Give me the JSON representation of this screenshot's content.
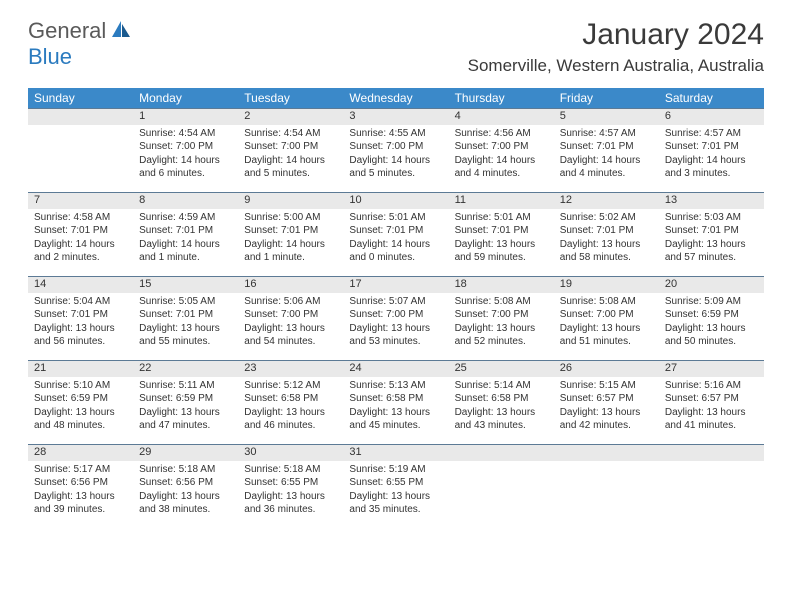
{
  "logo": {
    "word1": "General",
    "word2": "Blue"
  },
  "title": "January 2024",
  "location": "Somerville, Western Australia, Australia",
  "colors": {
    "header_bg": "#3b89c9",
    "header_text": "#ffffff",
    "daynum_bg": "#e9e9e9",
    "border": "#5c7a95",
    "logo_gray": "#5a5a5a",
    "logo_blue": "#2b7bbf"
  },
  "days_of_week": [
    "Sunday",
    "Monday",
    "Tuesday",
    "Wednesday",
    "Thursday",
    "Friday",
    "Saturday"
  ],
  "weeks": [
    {
      "nums": [
        "",
        "1",
        "2",
        "3",
        "4",
        "5",
        "6"
      ],
      "cells": [
        "",
        "Sunrise: 4:54 AM\nSunset: 7:00 PM\nDaylight: 14 hours and 6 minutes.",
        "Sunrise: 4:54 AM\nSunset: 7:00 PM\nDaylight: 14 hours and 5 minutes.",
        "Sunrise: 4:55 AM\nSunset: 7:00 PM\nDaylight: 14 hours and 5 minutes.",
        "Sunrise: 4:56 AM\nSunset: 7:00 PM\nDaylight: 14 hours and 4 minutes.",
        "Sunrise: 4:57 AM\nSunset: 7:01 PM\nDaylight: 14 hours and 4 minutes.",
        "Sunrise: 4:57 AM\nSunset: 7:01 PM\nDaylight: 14 hours and 3 minutes."
      ]
    },
    {
      "nums": [
        "7",
        "8",
        "9",
        "10",
        "11",
        "12",
        "13"
      ],
      "cells": [
        "Sunrise: 4:58 AM\nSunset: 7:01 PM\nDaylight: 14 hours and 2 minutes.",
        "Sunrise: 4:59 AM\nSunset: 7:01 PM\nDaylight: 14 hours and 1 minute.",
        "Sunrise: 5:00 AM\nSunset: 7:01 PM\nDaylight: 14 hours and 1 minute.",
        "Sunrise: 5:01 AM\nSunset: 7:01 PM\nDaylight: 14 hours and 0 minutes.",
        "Sunrise: 5:01 AM\nSunset: 7:01 PM\nDaylight: 13 hours and 59 minutes.",
        "Sunrise: 5:02 AM\nSunset: 7:01 PM\nDaylight: 13 hours and 58 minutes.",
        "Sunrise: 5:03 AM\nSunset: 7:01 PM\nDaylight: 13 hours and 57 minutes."
      ]
    },
    {
      "nums": [
        "14",
        "15",
        "16",
        "17",
        "18",
        "19",
        "20"
      ],
      "cells": [
        "Sunrise: 5:04 AM\nSunset: 7:01 PM\nDaylight: 13 hours and 56 minutes.",
        "Sunrise: 5:05 AM\nSunset: 7:01 PM\nDaylight: 13 hours and 55 minutes.",
        "Sunrise: 5:06 AM\nSunset: 7:00 PM\nDaylight: 13 hours and 54 minutes.",
        "Sunrise: 5:07 AM\nSunset: 7:00 PM\nDaylight: 13 hours and 53 minutes.",
        "Sunrise: 5:08 AM\nSunset: 7:00 PM\nDaylight: 13 hours and 52 minutes.",
        "Sunrise: 5:08 AM\nSunset: 7:00 PM\nDaylight: 13 hours and 51 minutes.",
        "Sunrise: 5:09 AM\nSunset: 6:59 PM\nDaylight: 13 hours and 50 minutes."
      ]
    },
    {
      "nums": [
        "21",
        "22",
        "23",
        "24",
        "25",
        "26",
        "27"
      ],
      "cells": [
        "Sunrise: 5:10 AM\nSunset: 6:59 PM\nDaylight: 13 hours and 48 minutes.",
        "Sunrise: 5:11 AM\nSunset: 6:59 PM\nDaylight: 13 hours and 47 minutes.",
        "Sunrise: 5:12 AM\nSunset: 6:58 PM\nDaylight: 13 hours and 46 minutes.",
        "Sunrise: 5:13 AM\nSunset: 6:58 PM\nDaylight: 13 hours and 45 minutes.",
        "Sunrise: 5:14 AM\nSunset: 6:58 PM\nDaylight: 13 hours and 43 minutes.",
        "Sunrise: 5:15 AM\nSunset: 6:57 PM\nDaylight: 13 hours and 42 minutes.",
        "Sunrise: 5:16 AM\nSunset: 6:57 PM\nDaylight: 13 hours and 41 minutes."
      ]
    },
    {
      "nums": [
        "28",
        "29",
        "30",
        "31",
        "",
        "",
        ""
      ],
      "cells": [
        "Sunrise: 5:17 AM\nSunset: 6:56 PM\nDaylight: 13 hours and 39 minutes.",
        "Sunrise: 5:18 AM\nSunset: 6:56 PM\nDaylight: 13 hours and 38 minutes.",
        "Sunrise: 5:18 AM\nSunset: 6:55 PM\nDaylight: 13 hours and 36 minutes.",
        "Sunrise: 5:19 AM\nSunset: 6:55 PM\nDaylight: 13 hours and 35 minutes.",
        "",
        "",
        ""
      ]
    }
  ]
}
